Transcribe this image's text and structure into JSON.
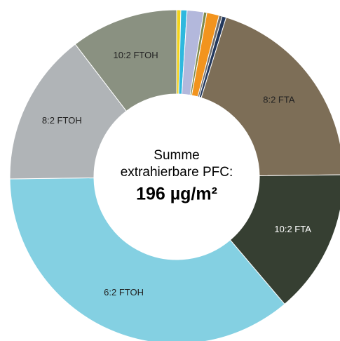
{
  "chart_data": {
    "type": "donut",
    "categories": [
      null,
      null,
      null,
      null,
      null,
      null,
      null,
      "8:2 FTA",
      "10:2 FTA",
      "6:2 FTOH",
      "8:2 FTOH",
      "10:2 FTOH"
    ],
    "values": [
      0.4,
      0.6,
      1.6,
      0.3,
      1.2,
      0.3,
      0.4,
      20,
      14,
      36,
      14.8,
      10.4
    ],
    "colors": [
      "#f2d21c",
      "#2fb8de",
      "#b3b8dc",
      "#7f8a4a",
      "#f2941e",
      "#6e6e6e",
      "#23385c",
      "#7d6e57",
      "#363f32",
      "#84d0e2",
      "#b0b4b7",
      "#8a9181"
    ],
    "center_text": [
      "Summe",
      "extrahierbare PFC:",
      "196 µg/m²"
    ]
  }
}
